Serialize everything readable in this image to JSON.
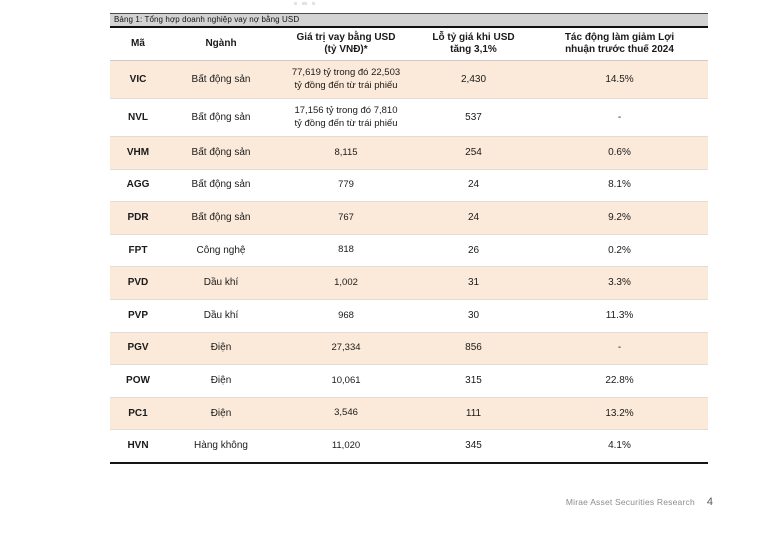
{
  "table": {
    "title": "Bảng 1: Tổng hợp doanh nghiệp vay nợ bằng USD",
    "columns": [
      "Mã",
      "Ngành",
      "Giá trị vay bằng USD\n(tỷ VNĐ)*",
      "Lỗ tỷ giá khi USD\ntăng 3,1%",
      "Tác động làm giảm Lợi\nnhuận trước thuế 2024"
    ],
    "rows": [
      {
        "ticker": "VIC",
        "sector": "Bất động sản",
        "loan": "77,619 tỷ trong đó 22,503\ntỷ đồng đến từ trái phiếu",
        "fx_loss": "2,430",
        "impact": "14.5%"
      },
      {
        "ticker": "NVL",
        "sector": "Bất động sản",
        "loan": "17,156 tỷ trong đó 7,810\ntỷ đồng đến từ trái phiếu",
        "fx_loss": "537",
        "impact": "-"
      },
      {
        "ticker": "VHM",
        "sector": "Bất động sản",
        "loan": "8,115",
        "fx_loss": "254",
        "impact": "0.6%"
      },
      {
        "ticker": "AGG",
        "sector": "Bất động sản",
        "loan": "779",
        "fx_loss": "24",
        "impact": "8.1%"
      },
      {
        "ticker": "PDR",
        "sector": "Bất động sản",
        "loan": "767",
        "fx_loss": "24",
        "impact": "9.2%"
      },
      {
        "ticker": "FPT",
        "sector": "Công nghệ",
        "loan": "818",
        "fx_loss": "26",
        "impact": "0.2%"
      },
      {
        "ticker": "PVD",
        "sector": "Dầu khí",
        "loan": "1,002",
        "fx_loss": "31",
        "impact": "3.3%"
      },
      {
        "ticker": "PVP",
        "sector": "Dầu khí",
        "loan": "968",
        "fx_loss": "30",
        "impact": "11.3%"
      },
      {
        "ticker": "PGV",
        "sector": "Điện",
        "loan": "27,334",
        "fx_loss": "856",
        "impact": "-"
      },
      {
        "ticker": "POW",
        "sector": "Điện",
        "loan": "10,061",
        "fx_loss": "315",
        "impact": "22.8%"
      },
      {
        "ticker": "PC1",
        "sector": "Điện",
        "loan": "3,546",
        "fx_loss": "111",
        "impact": "13.2%"
      },
      {
        "ticker": "HVN",
        "sector": "Hàng không",
        "loan": "11,020",
        "fx_loss": "345",
        "impact": "4.1%"
      }
    ]
  },
  "footer": {
    "brand": "Mirae Asset Securities Research",
    "page": "4"
  },
  "colors": {
    "row_shade": "#fbead9",
    "title_bar": "#d3d3d3",
    "border_dark": "#151515",
    "separator": "#e4ddd2",
    "footer_text": "#8c8c8c"
  }
}
